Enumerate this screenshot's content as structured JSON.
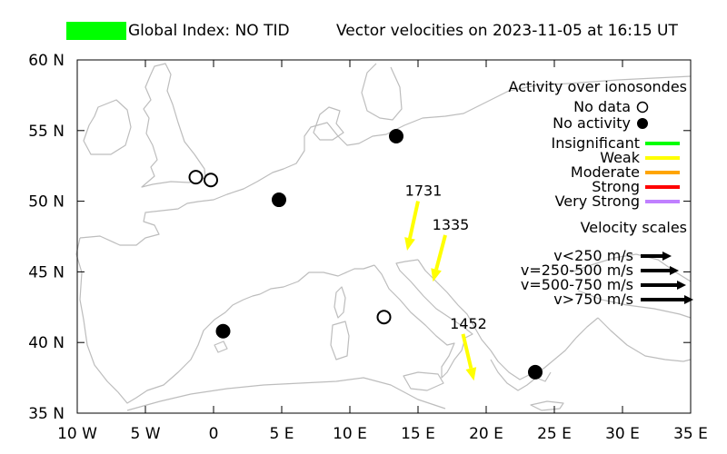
{
  "header": {
    "index_color": "#00ff00",
    "index_label": "Global Index: NO TID",
    "title": "Vector velocities on 2023-11-05 at 16:15 UT"
  },
  "chart_data": {
    "type": "map",
    "x_ticks": [
      {
        "value": -10,
        "label": "10 W"
      },
      {
        "value": -5,
        "label": "5 W"
      },
      {
        "value": 0,
        "label": "0"
      },
      {
        "value": 5,
        "label": "5 E"
      },
      {
        "value": 10,
        "label": "10 E"
      },
      {
        "value": 15,
        "label": "15 E"
      },
      {
        "value": 20,
        "label": "20 E"
      },
      {
        "value": 25,
        "label": "25 E"
      },
      {
        "value": 30,
        "label": "30 E"
      },
      {
        "value": 35,
        "label": "35 E"
      }
    ],
    "y_ticks": [
      {
        "value": 35,
        "label": "35 N"
      },
      {
        "value": 40,
        "label": "40 N"
      },
      {
        "value": 45,
        "label": "45 N"
      },
      {
        "value": 50,
        "label": "50 N"
      },
      {
        "value": 55,
        "label": "55 N"
      },
      {
        "value": 60,
        "label": "60 N"
      }
    ],
    "xlim": [
      -10,
      35
    ],
    "ylim": [
      35,
      60
    ],
    "coastline_color": "#bdbdbd",
    "ionosondes": [
      {
        "lon": -1.3,
        "lat": 51.7,
        "status": "no_data"
      },
      {
        "lon": -0.2,
        "lat": 51.5,
        "status": "no_data"
      },
      {
        "lon": 4.8,
        "lat": 50.1,
        "status": "no_activity"
      },
      {
        "lon": 13.4,
        "lat": 54.6,
        "status": "no_activity"
      },
      {
        "lon": 0.7,
        "lat": 40.8,
        "status": "no_activity"
      },
      {
        "lon": 12.5,
        "lat": 41.8,
        "status": "no_data"
      },
      {
        "lon": 23.6,
        "lat": 37.9,
        "status": "no_activity"
      }
    ],
    "vectors": [
      {
        "label": "1731",
        "lon_start": 15.0,
        "lat_start": 50.0,
        "lon_end": 14.2,
        "lat_end": 46.5,
        "color": "#ffff00"
      },
      {
        "label": "1335",
        "lon_start": 17.0,
        "lat_start": 47.6,
        "lon_end": 16.1,
        "lat_end": 44.3,
        "color": "#ffff00"
      },
      {
        "label": "1452",
        "lon_start": 18.3,
        "lat_start": 40.6,
        "lon_end": 19.1,
        "lat_end": 37.3,
        "color": "#ffff00"
      }
    ]
  },
  "legend": {
    "activity_title": "Activity over ionosondes",
    "no_data_label": "No data",
    "no_activity_label": "No activity",
    "levels": [
      {
        "label": "Insignificant",
        "color": "#00ff00"
      },
      {
        "label": "Weak",
        "color": "#ffff00"
      },
      {
        "label": "Moderate",
        "color": "#ffa500"
      },
      {
        "label": "Strong",
        "color": "#ff0000"
      },
      {
        "label": "Very Strong",
        "color": "#c080ff"
      }
    ],
    "velocity_title": "Velocity scales",
    "velocity_scales": [
      {
        "label": "v<250 m/s"
      },
      {
        "label": "v=250-500 m/s"
      },
      {
        "label": "v=500-750 m/s"
      },
      {
        "label": "v>750 m/s"
      }
    ]
  }
}
